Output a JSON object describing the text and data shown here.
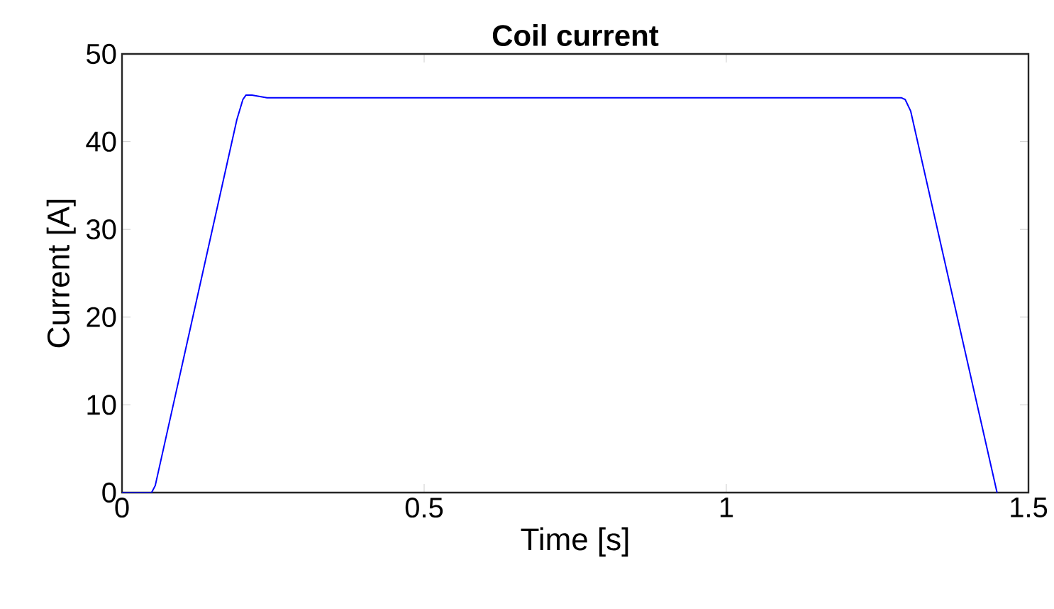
{
  "chart_data": {
    "type": "line",
    "title": "Coil current",
    "xlabel": "Time [s]",
    "ylabel": "Current  [A]",
    "xlim": [
      0,
      1.5
    ],
    "ylim": [
      0,
      50
    ],
    "xticks": [
      0,
      0.5,
      1,
      1.5
    ],
    "yticks": [
      0,
      10,
      20,
      30,
      40,
      50
    ],
    "grid": false,
    "series": [
      {
        "color": "#0000ff",
        "x": [
          0,
          0.049,
          0.055,
          0.19,
          0.2,
          0.205,
          0.215,
          0.24,
          0.5,
          1.0,
          1.29,
          1.296,
          1.305,
          1.448
        ],
        "values": [
          0,
          0,
          0.8,
          42.5,
          44.8,
          45.3,
          45.3,
          45.0,
          45.0,
          45.0,
          45.0,
          44.8,
          43.5,
          0
        ]
      }
    ]
  }
}
